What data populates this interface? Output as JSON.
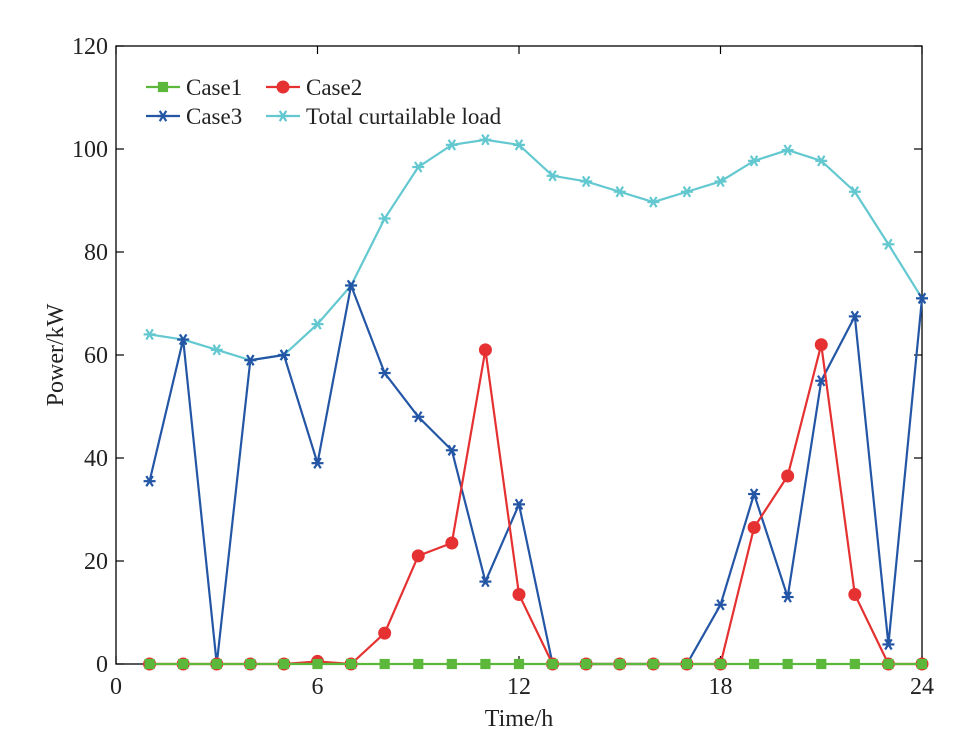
{
  "chart_data": {
    "type": "line",
    "title": "",
    "xlabel": "Time/h",
    "ylabel": "Power/kW",
    "xlim": [
      0,
      24
    ],
    "ylim": [
      0,
      120
    ],
    "xticks": [
      "0",
      "6",
      "12",
      "18",
      "24"
    ],
    "yticks": [
      "0",
      "20",
      "40",
      "60",
      "80",
      "100",
      "120"
    ],
    "grid": false,
    "legend_position": "top-left",
    "x": [
      1,
      2,
      3,
      4,
      5,
      6,
      7,
      8,
      9,
      10,
      11,
      12,
      13,
      14,
      15,
      16,
      17,
      18,
      19,
      20,
      21,
      22,
      23,
      24
    ],
    "series": [
      {
        "name": "Case1",
        "color": "#5cb83a",
        "marker": "square",
        "values": [
          0,
          0,
          0,
          0,
          0,
          0,
          0,
          0,
          0,
          0,
          0,
          0,
          0,
          0,
          0,
          0,
          0,
          0,
          0,
          0,
          0,
          0,
          0,
          0
        ]
      },
      {
        "name": "Case2",
        "color": "#e53131",
        "marker": "circle",
        "values": [
          0,
          0,
          0,
          0,
          0,
          0.5,
          0,
          6,
          21,
          23.5,
          61,
          13.5,
          0,
          0,
          0,
          0,
          0,
          0,
          26.5,
          36.5,
          62,
          13.5,
          0,
          0
        ]
      },
      {
        "name": "Case3",
        "color": "#2456a6",
        "marker": "asterisk",
        "values": [
          35.5,
          63,
          0,
          59,
          60,
          39,
          73.5,
          56.5,
          48,
          41.5,
          16,
          31,
          0,
          0,
          0,
          0,
          0,
          11.5,
          33,
          13,
          55,
          67.5,
          3.8,
          71
        ]
      },
      {
        "name": "Total curtailable load",
        "color": "#63c8d0",
        "marker": "asterisk",
        "values": [
          64,
          63,
          61,
          59,
          60,
          66,
          73.5,
          86.5,
          96.5,
          100.8,
          101.8,
          100.8,
          94.8,
          93.7,
          91.7,
          89.7,
          91.7,
          93.7,
          97.7,
          99.8,
          97.7,
          91.7,
          81.5,
          71
        ]
      }
    ]
  }
}
